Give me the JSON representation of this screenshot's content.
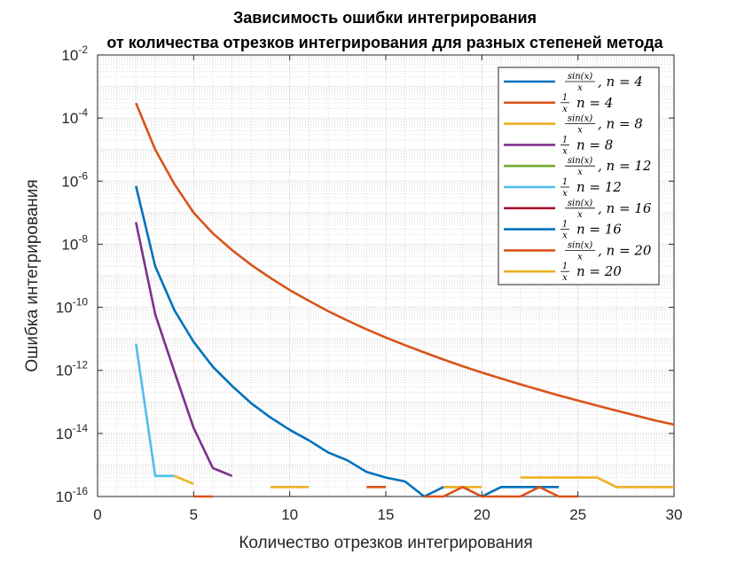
{
  "chart_data": {
    "type": "line",
    "title": [
      "Зависимость ошибки интегрирования",
      "от количества отрезков интегрирования для разных степеней метода"
    ],
    "xlabel": "Количество отрезков интегрирования",
    "ylabel": "Ошибка интегрирования",
    "xlim": [
      0,
      30
    ],
    "ylim": [
      1e-16,
      0.01
    ],
    "yscale": "log",
    "grid": true,
    "legend_position": "top-right",
    "x_ticks": [
      "0",
      "5",
      "10",
      "15",
      "20",
      "25",
      "30"
    ],
    "y_ticks": [
      {
        "base": "10",
        "exp": "-16"
      },
      {
        "base": "10",
        "exp": "-14"
      },
      {
        "base": "10",
        "exp": "-12"
      },
      {
        "base": "10",
        "exp": "-10"
      },
      {
        "base": "10",
        "exp": "-8"
      },
      {
        "base": "10",
        "exp": "-6"
      },
      {
        "base": "10",
        "exp": "-4"
      },
      {
        "base": "10",
        "exp": "-2"
      }
    ],
    "series": [
      {
        "name": "sin(x)/x, n = 4",
        "kind": "sin",
        "nlabel": "n = 4",
        "color": "#0072BD",
        "points": [
          [
            2,
            7e-07
          ],
          [
            3,
            2e-09
          ],
          [
            4,
            8e-11
          ],
          [
            5,
            8e-12
          ],
          [
            6,
            1.3e-12
          ],
          [
            7,
            3.2e-13
          ],
          [
            8,
            9e-14
          ],
          [
            9,
            3.2e-14
          ],
          [
            10,
            1.3e-14
          ],
          [
            11,
            6e-15
          ],
          [
            12,
            2.5e-15
          ],
          [
            13,
            1.4e-15
          ],
          [
            14,
            6e-16
          ],
          [
            15,
            4e-16
          ],
          [
            16,
            3e-16
          ],
          [
            17,
            1e-16
          ],
          [
            18,
            2e-16
          ],
          [
            19,
            2e-16
          ],
          [
            20,
            1e-16
          ],
          [
            21,
            2e-16
          ],
          [
            22,
            2e-16
          ],
          [
            23,
            2e-16
          ],
          [
            24,
            2e-16
          ],
          [
            25,
            null
          ],
          [
            26,
            null
          ],
          [
            27,
            null
          ],
          [
            28,
            null
          ],
          [
            29,
            null
          ],
          [
            30,
            null
          ]
        ]
      },
      {
        "name": "1/x, n = 4",
        "kind": "inv",
        "nlabel": "n = 4",
        "color": "#D95319",
        "points": [
          [
            2,
            0.0003
          ],
          [
            3,
            1e-05
          ],
          [
            4,
            8e-07
          ],
          [
            5,
            1e-07
          ],
          [
            6,
            2.2e-08
          ],
          [
            7,
            6.5e-09
          ],
          [
            8,
            2.2e-09
          ],
          [
            9,
            8.5e-10
          ],
          [
            10,
            3.5e-10
          ],
          [
            11,
            1.6e-10
          ],
          [
            12,
            7.5e-11
          ],
          [
            13,
            3.8e-11
          ],
          [
            14,
            2e-11
          ],
          [
            15,
            1.1e-11
          ],
          [
            16,
            6.3e-12
          ],
          [
            17,
            3.7e-12
          ],
          [
            18,
            2.2e-12
          ],
          [
            19,
            1.35e-12
          ],
          [
            20,
            8.5e-13
          ],
          [
            21,
            5.5e-13
          ],
          [
            22,
            3.6e-13
          ],
          [
            23,
            2.4e-13
          ],
          [
            24,
            1.6e-13
          ],
          [
            25,
            1.1e-13
          ],
          [
            26,
            7.6e-14
          ],
          [
            27,
            5.3e-14
          ],
          [
            28,
            3.7e-14
          ],
          [
            29,
            2.6e-14
          ],
          [
            30,
            1.9e-14
          ]
        ]
      },
      {
        "name": "sin(x)/x, n = 8",
        "kind": "sin",
        "nlabel": "n = 8",
        "color": "#EDB120",
        "points": [
          [
            2,
            null
          ],
          [
            3,
            null
          ],
          [
            4,
            null
          ],
          [
            5,
            null
          ],
          [
            6,
            null
          ],
          [
            7,
            null
          ],
          [
            8,
            null
          ],
          [
            9,
            2e-16
          ],
          [
            10,
            2e-16
          ],
          [
            11,
            2e-16
          ],
          [
            12,
            null
          ],
          [
            13,
            null
          ],
          [
            14,
            null
          ],
          [
            15,
            null
          ],
          [
            16,
            null
          ],
          [
            17,
            null
          ],
          [
            18,
            2e-16
          ],
          [
            19,
            2e-16
          ],
          [
            20,
            2e-16
          ],
          [
            21,
            null
          ],
          [
            22,
            4e-16
          ],
          [
            23,
            4e-16
          ],
          [
            24,
            4e-16
          ],
          [
            25,
            4e-16
          ],
          [
            26,
            4e-16
          ],
          [
            27,
            2e-16
          ],
          [
            28,
            2e-16
          ],
          [
            29,
            2e-16
          ],
          [
            30,
            2e-16
          ]
        ]
      },
      {
        "name": "1/x, n = 8",
        "kind": "inv",
        "nlabel": "n = 8",
        "color": "#7E2F8E",
        "points": [
          [
            2,
            5e-08
          ],
          [
            3,
            6e-11
          ],
          [
            4,
            9e-13
          ],
          [
            5,
            1.5e-14
          ],
          [
            6,
            8e-16
          ],
          [
            7,
            4.5e-16
          ]
        ]
      },
      {
        "name": "sin(x)/x, n = 12",
        "kind": "sin",
        "nlabel": "n = 12",
        "color": "#77AC30",
        "points": []
      },
      {
        "name": "1/x, n = 12",
        "kind": "inv",
        "nlabel": "n = 12",
        "color": "#4DBEEE",
        "points": [
          [
            2,
            7e-12
          ],
          [
            3,
            4.5e-16
          ],
          [
            4,
            4.5e-16
          ]
        ]
      },
      {
        "name": "sin(x)/x, n = 16",
        "kind": "sin",
        "nlabel": "n = 16",
        "color": "#A2142F",
        "points": []
      },
      {
        "name": "1/x, n = 16",
        "kind": "inv",
        "nlabel": "n = 16",
        "color": "#0072BD",
        "points": []
      },
      {
        "name": "sin(x)/x, n = 20",
        "kind": "sin",
        "nlabel": "n = 20",
        "color": "#D95319",
        "points": [
          [
            5,
            1e-16
          ],
          [
            6,
            1e-16
          ],
          [
            7,
            null
          ],
          [
            14,
            2e-16
          ],
          [
            15,
            2e-16
          ],
          [
            16,
            null
          ],
          [
            17,
            1e-16
          ],
          [
            18,
            1e-16
          ],
          [
            19,
            2e-16
          ],
          [
            20,
            1e-16
          ],
          [
            21,
            1e-16
          ],
          [
            22,
            1e-16
          ],
          [
            23,
            2e-16
          ],
          [
            24,
            1e-16
          ],
          [
            25,
            1e-16
          ],
          [
            26,
            null
          ]
        ]
      },
      {
        "name": "1/x, n = 20",
        "kind": "inv",
        "nlabel": "n = 20",
        "color": "#EDB120",
        "points": [
          [
            4,
            4.5e-16
          ],
          [
            5,
            2.5e-16
          ],
          [
            6,
            null
          ]
        ]
      }
    ]
  }
}
